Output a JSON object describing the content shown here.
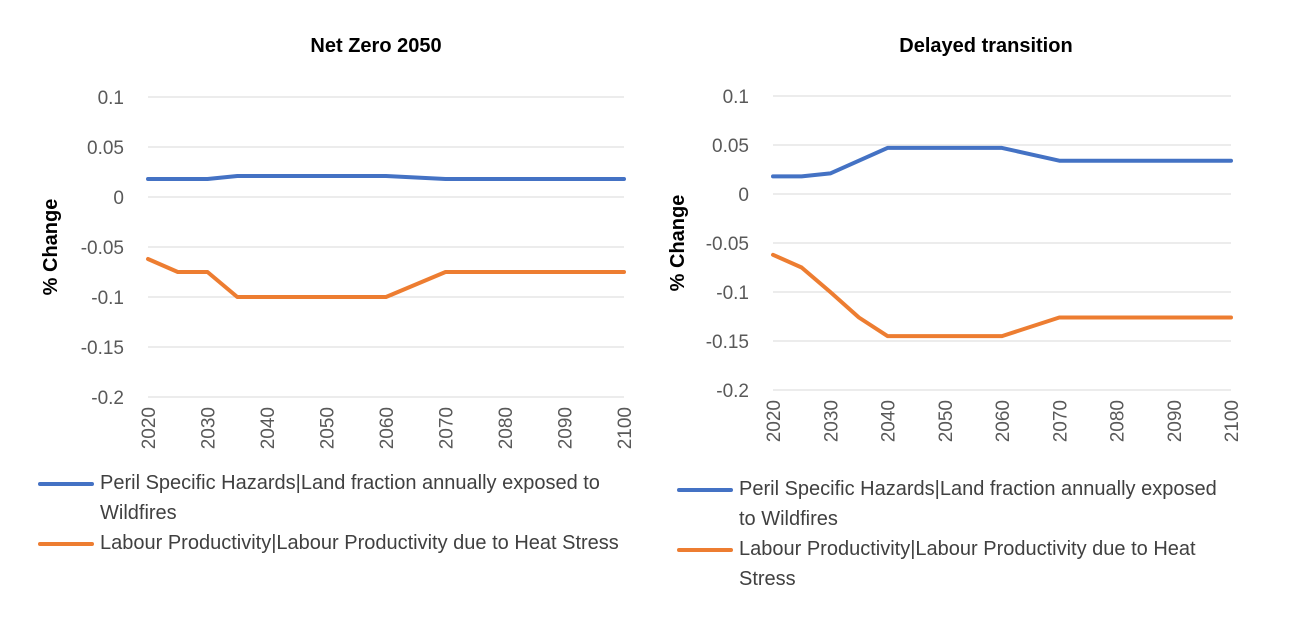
{
  "charts": [
    {
      "title": "Net Zero 2050",
      "chart_data": {
        "type": "line",
        "title": "Net Zero 2050",
        "xlabel": "",
        "ylabel": "% Change",
        "x": [
          2020,
          2025,
          2030,
          2035,
          2040,
          2050,
          2060,
          2070,
          2080,
          2090,
          2100
        ],
        "xticks": [
          "2020",
          "2030",
          "2040",
          "2050",
          "2060",
          "2070",
          "2080",
          "2090",
          "2100"
        ],
        "yticks": [
          "0.1",
          "0.05",
          "0",
          "-0.05",
          "-0.1",
          "-0.15",
          "-0.2"
        ],
        "ylim": [
          -0.2,
          0.1
        ],
        "grid": true,
        "legend_position": "bottom",
        "series": [
          {
            "name": "Peril Specific Hazards|Land fraction annually exposed to Wildfires",
            "color": "#4472C4",
            "values": [
              0.018,
              0.018,
              0.018,
              0.021,
              0.021,
              0.021,
              0.021,
              0.018,
              0.018,
              0.018,
              0.018
            ]
          },
          {
            "name": "Labour Productivity|Labour Productivity due to Heat Stress",
            "color": "#ED7D31",
            "values": [
              -0.062,
              -0.075,
              -0.075,
              -0.1,
              -0.1,
              -0.1,
              -0.1,
              -0.075,
              -0.075,
              -0.075,
              -0.075
            ]
          }
        ]
      },
      "legend": [
        "Peril Specific Hazards|Land fraction annually exposed to Wildfires",
        "Labour Productivity|Labour Productivity due to Heat Stress"
      ]
    },
    {
      "title": "Delayed transition",
      "chart_data": {
        "type": "line",
        "title": "Delayed transition",
        "xlabel": "",
        "ylabel": "% Change",
        "x": [
          2020,
          2025,
          2030,
          2035,
          2040,
          2050,
          2060,
          2070,
          2080,
          2090,
          2100
        ],
        "xticks": [
          "2020",
          "2030",
          "2040",
          "2050",
          "2060",
          "2070",
          "2080",
          "2090",
          "2100"
        ],
        "yticks": [
          "0.1",
          "0.05",
          "0",
          "-0.05",
          "-0.1",
          "-0.15",
          "-0.2"
        ],
        "ylim": [
          -0.2,
          0.1
        ],
        "grid": true,
        "legend_position": "bottom",
        "series": [
          {
            "name": "Peril Specific Hazards|Land fraction annually exposed to Wildfires",
            "color": "#4472C4",
            "values": [
              0.018,
              0.018,
              0.021,
              0.034,
              0.047,
              0.047,
              0.047,
              0.034,
              0.034,
              0.034,
              0.034
            ]
          },
          {
            "name": "Labour Productivity|Labour Productivity due to Heat Stress",
            "color": "#ED7D31",
            "values": [
              -0.062,
              -0.075,
              -0.1,
              -0.126,
              -0.145,
              -0.145,
              -0.145,
              -0.126,
              -0.126,
              -0.126,
              -0.126
            ]
          }
        ]
      },
      "legend": [
        "Peril Specific Hazards|Land fraction annually exposed to Wildfires",
        "Labour Productivity|Labour Productivity due to Heat Stress"
      ]
    }
  ]
}
